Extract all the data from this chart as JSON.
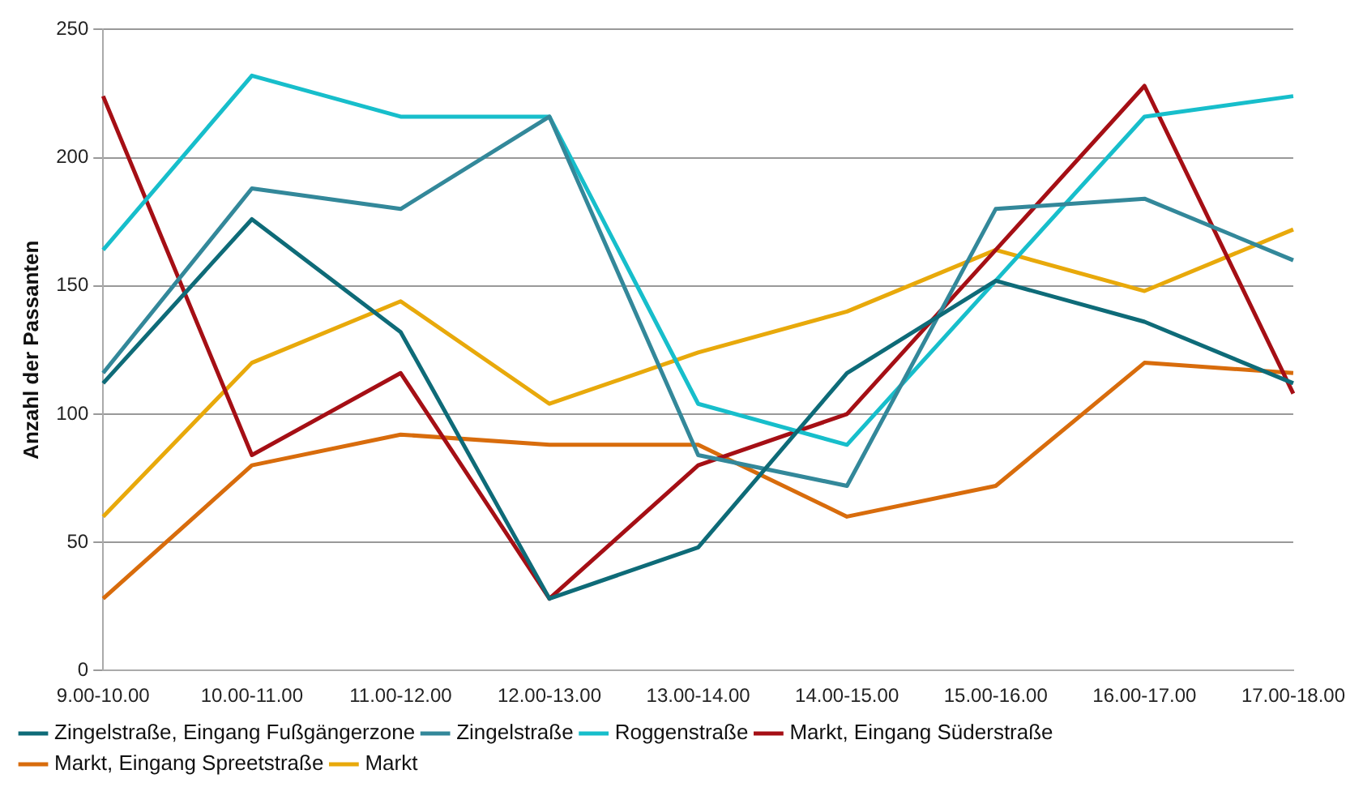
{
  "chart_data": {
    "type": "line",
    "ylabel": "Anzahl der Passanten",
    "categories": [
      "9.00-10.00",
      "10.00-11.00",
      "11.00-12.00",
      "12.00-13.00",
      "13.00-14.00",
      "14.00-15.00",
      "15.00-16.00",
      "16.00-17.00",
      "17.00-18.00"
    ],
    "series": [
      {
        "name": "Zingelstraße, Eingang Fußgängerzone",
        "color": "#0e6b78",
        "values": [
          112,
          176,
          132,
          28,
          48,
          116,
          152,
          136,
          112
        ]
      },
      {
        "name": "Zingelstraße",
        "color": "#33889a",
        "values": [
          116,
          188,
          180,
          216,
          84,
          72,
          180,
          184,
          160
        ]
      },
      {
        "name": "Roggenstraße",
        "color": "#17becb",
        "values": [
          164,
          232,
          216,
          216,
          104,
          88,
          152,
          216,
          224
        ]
      },
      {
        "name": "Markt, Eingang Süderstraße",
        "color": "#a50f15",
        "values": [
          224,
          84,
          116,
          28,
          80,
          100,
          164,
          228,
          108
        ]
      },
      {
        "name": "Markt, Eingang Spreetstraße",
        "color": "#d86c0c",
        "values": [
          28,
          80,
          92,
          88,
          88,
          60,
          72,
          120,
          116
        ]
      },
      {
        "name": "Markt",
        "color": "#e8a90b",
        "values": [
          60,
          120,
          144,
          104,
          124,
          140,
          164,
          148,
          172
        ]
      }
    ],
    "ylim": [
      0,
      250
    ],
    "yticks": [
      0,
      50,
      100,
      150,
      200,
      250
    ],
    "grid": "y",
    "legend": "bottom",
    "marker": "none",
    "line_style": "solid"
  }
}
